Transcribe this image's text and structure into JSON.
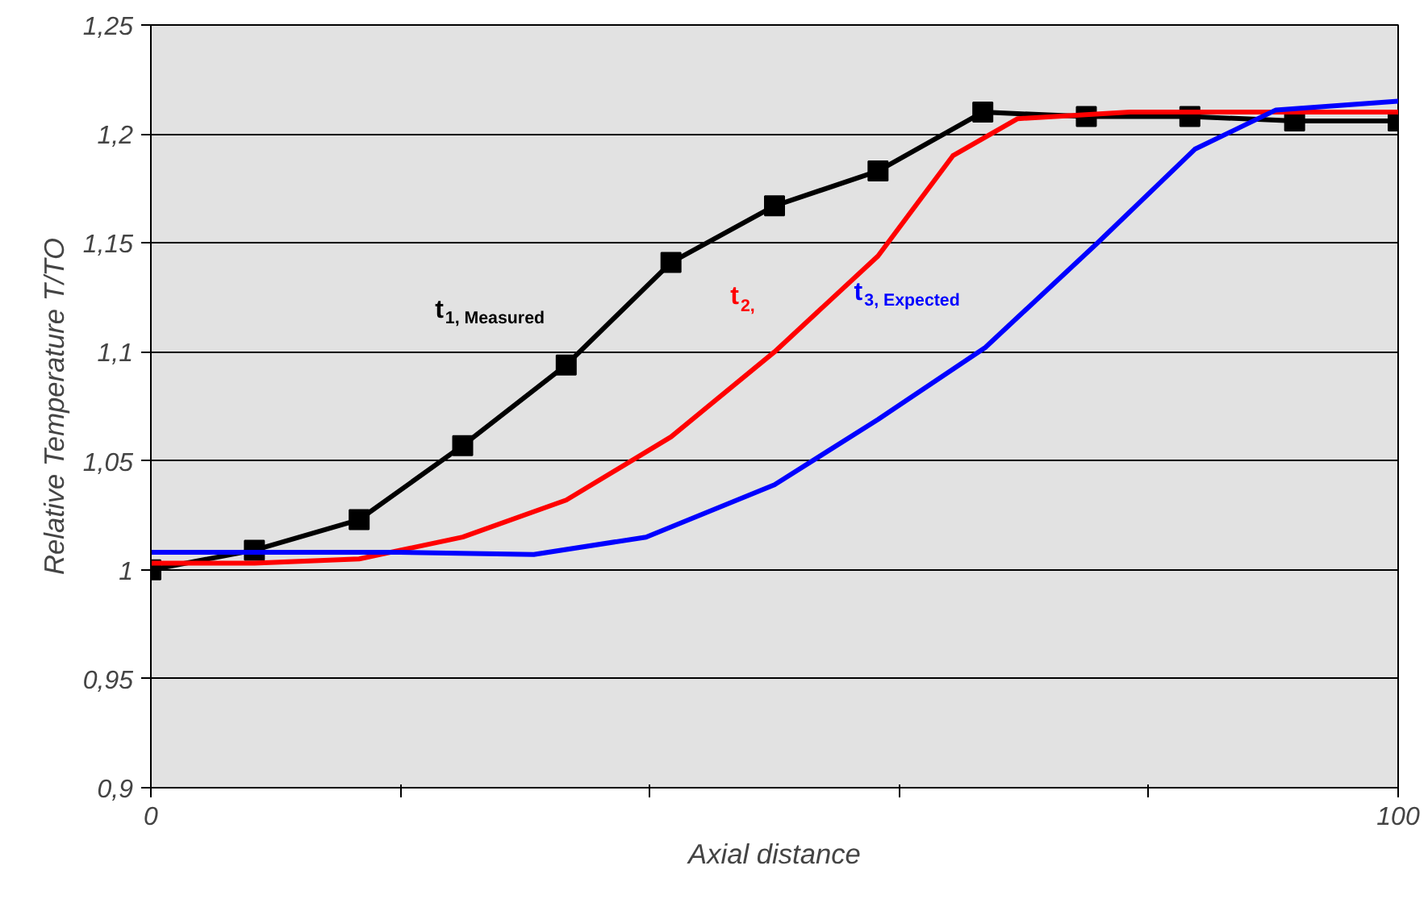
{
  "chart_data": {
    "type": "line",
    "xlabel": "Axial distance",
    "ylabel": "Relative Temperature T/TO",
    "xlim": [
      0,
      100
    ],
    "ylim": [
      0.9,
      1.25
    ],
    "xticks": [
      0,
      {
        "value": 20,
        "label": null
      },
      {
        "value": 40,
        "label": null
      },
      {
        "value": 60,
        "label": null
      },
      {
        "value": 80,
        "label": null
      },
      100
    ],
    "yticks": [
      {
        "value": 0.9,
        "label": "0,9"
      },
      {
        "value": 0.95,
        "label": "0,95"
      },
      1,
      {
        "value": 1.05,
        "label": "1,05"
      },
      {
        "value": 1.1,
        "label": "1,1"
      },
      {
        "value": 1.15,
        "label": "1,15"
      },
      {
        "value": 1.2,
        "label": "1,2"
      },
      {
        "value": 1.25,
        "label": "1,25"
      }
    ],
    "grid": "y",
    "line_style": "solid",
    "series": [
      {
        "name": "t$_{1, Measured}$",
        "color": "#000000",
        "marker": "square",
        "x": [
          0,
          8.3,
          16.7,
          25,
          33.3,
          41.7,
          50,
          58.3,
          66.7,
          75,
          83.3,
          91.7,
          100
        ],
        "values": [
          1.0,
          1.009,
          1.023,
          1.057,
          1.094,
          1.141,
          1.167,
          1.183,
          1.21,
          1.208,
          1.208,
          1.206,
          1.206
        ]
      },
      {
        "name": "t$_{2,}$",
        "color": "#ff0000",
        "marker": "none",
        "x": [
          0,
          8.3,
          16.7,
          25,
          33.3,
          41.7,
          50,
          58.3,
          64.3,
          69.5,
          78.5,
          100
        ],
        "values": [
          1.003,
          1.003,
          1.005,
          1.015,
          1.032,
          1.061,
          1.1,
          1.144,
          1.19,
          1.207,
          1.21,
          1.21
        ]
      },
      {
        "name": "t$_{3, Expected}$",
        "color": "#0000ff",
        "marker": "none",
        "x": [
          0,
          14,
          20,
          30.7,
          39.7,
          50,
          58.3,
          66.9,
          75.9,
          83.7,
          90.2,
          100
        ],
        "values": [
          1.008,
          1.008,
          1.008,
          1.007,
          1.015,
          1.039,
          1.069,
          1.102,
          1.15,
          1.193,
          1.211,
          1.215
        ]
      }
    ]
  }
}
